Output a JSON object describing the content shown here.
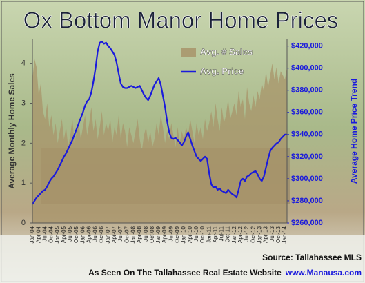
{
  "chart_data": {
    "type": "area-line",
    "title": "Ox Bottom Manor Home Prices",
    "ylabel": "Average Monthly Home Sales",
    "y2label": "Average Home Price Trend",
    "source": "Source: Tallahassee MLS",
    "footer": "As Seen On The Tallahassee Real Estate Website",
    "website": "www.Manausa.com",
    "categories": [
      "Jan-04",
      null,
      null,
      "Apr-04",
      null,
      null,
      "Jul-04",
      null,
      null,
      "Oct-04",
      null,
      null,
      "Jan-05",
      null,
      null,
      "Apr-05",
      null,
      null,
      "Jul-05",
      null,
      null,
      "Oct-05",
      null,
      null,
      "Jan-06",
      null,
      null,
      "Apr-06",
      null,
      null,
      "Jul-06",
      null,
      null,
      "Oct-06",
      null,
      null,
      "Jan-07",
      null,
      null,
      "Apr-07",
      null,
      null,
      "Jul-07",
      null,
      null,
      "Oct-07",
      null,
      null,
      "Jan-08",
      null,
      null,
      "Apr-08",
      null,
      null,
      "Jul-08",
      null,
      null,
      "Oct-08",
      null,
      null,
      "Jan-09",
      null,
      null,
      "Apr-09",
      null,
      null,
      "Jul-09",
      null,
      null,
      "Oct-09",
      null,
      null,
      "Jan-10",
      null,
      null,
      "Apr-10",
      null,
      null,
      "Jul-10",
      null,
      null,
      "Oct-10",
      null,
      null,
      "Jan-11",
      null,
      null,
      "Apr-11",
      null,
      null,
      "Jul-11",
      null,
      null,
      "Oct-11",
      null,
      null,
      "Jan-12",
      null,
      null,
      "Apr-12",
      null,
      null,
      "Jul-12",
      null,
      null,
      "Oct-12",
      null,
      null,
      "Jan-13",
      null,
      null,
      "Apr-13",
      null,
      null,
      "Jul-13",
      null,
      null,
      "Oct-13",
      null,
      null,
      "Jan-14",
      null
    ],
    "series": [
      {
        "name": "Avg. # Sales",
        "color": "#a8946a",
        "axis": "y",
        "values": [
          3.6,
          4.1,
          3.9,
          3.2,
          3.5,
          2.8,
          2.6,
          3.0,
          2.4,
          2.7,
          2.2,
          2.5,
          2.0,
          2.3,
          2.6,
          2.1,
          2.4,
          1.9,
          2.2,
          2.6,
          2.0,
          2.3,
          2.5,
          2.1,
          2.4,
          2.7,
          2.2,
          2.5,
          2.9,
          2.3,
          2.6,
          2.1,
          2.4,
          2.8,
          2.2,
          2.5,
          2.3,
          2.6,
          2.0,
          2.4,
          2.2,
          2.7,
          2.1,
          2.5,
          2.3,
          1.9,
          2.4,
          2.2,
          2.0,
          2.3,
          2.6,
          2.1,
          1.8,
          2.2,
          2.4,
          2.0,
          2.3,
          1.9,
          2.1,
          2.5,
          2.2,
          2.7,
          2.4,
          2.0,
          2.3,
          2.1,
          2.5,
          2.2,
          1.9,
          2.4,
          2.0,
          2.3,
          2.1,
          2.4,
          2.2,
          2.6,
          2.3,
          2.0,
          2.5,
          2.2,
          2.4,
          2.1,
          2.6,
          2.3,
          2.5,
          2.8,
          2.4,
          3.0,
          2.6,
          2.3,
          2.9,
          2.5,
          2.7,
          3.1,
          2.6,
          2.8,
          3.0,
          2.7,
          3.3,
          2.9,
          3.1,
          2.6,
          3.4,
          3.0,
          2.8,
          3.2,
          2.9,
          3.3,
          3.1,
          3.5,
          3.3,
          3.8,
          3.4,
          3.7,
          4.0,
          3.6,
          3.9,
          3.5,
          3.8,
          3.7,
          3.6,
          3.9
        ]
      },
      {
        "name": "Avg. Price",
        "color": "#1a1adc",
        "axis": "y2",
        "values": [
          277000,
          280000,
          283000,
          285000,
          287000,
          289000,
          290000,
          293000,
          297000,
          300000,
          302000,
          305000,
          308000,
          312000,
          316000,
          320000,
          323000,
          327000,
          331000,
          335000,
          340000,
          345000,
          350000,
          355000,
          360000,
          366000,
          370000,
          372000,
          378000,
          388000,
          400000,
          415000,
          423000,
          424000,
          422000,
          423000,
          420000,
          418000,
          415000,
          412000,
          405000,
          395000,
          386000,
          383000,
          382000,
          382000,
          383000,
          384000,
          383000,
          382000,
          383000,
          384000,
          380000,
          376000,
          373000,
          371000,
          375000,
          380000,
          385000,
          388000,
          391000,
          385000,
          375000,
          365000,
          352000,
          342000,
          337000,
          336000,
          337000,
          335000,
          333000,
          330000,
          333000,
          338000,
          342000,
          336000,
          330000,
          325000,
          320000,
          318000,
          316000,
          318000,
          320000,
          318000,
          305000,
          295000,
          292000,
          293000,
          290000,
          291000,
          289000,
          288000,
          287000,
          290000,
          288000,
          286000,
          285000,
          283000,
          290000,
          298000,
          300000,
          298000,
          302000,
          303000,
          305000,
          306000,
          307000,
          304000,
          300000,
          298000,
          302000,
          310000,
          318000,
          325000,
          328000,
          330000,
          332000,
          333000,
          336000,
          338000,
          340000,
          340000
        ]
      }
    ],
    "ylim": [
      0,
      4.6
    ],
    "yticks": [
      0,
      1,
      2,
      3,
      4
    ],
    "y2lim": [
      260000,
      426000
    ],
    "y2ticks": [
      {
        "value": 260000,
        "label": "$260,000"
      },
      {
        "value": 280000,
        "label": "$280,000"
      },
      {
        "value": 300000,
        "label": "$300,000"
      },
      {
        "value": 320000,
        "label": "$320,000"
      },
      {
        "value": 340000,
        "label": "$340,000"
      },
      {
        "value": 360000,
        "label": "$360,000"
      },
      {
        "value": 380000,
        "label": "$380,000"
      },
      {
        "value": 400000,
        "label": "$400,000"
      },
      {
        "value": 420000,
        "label": "$420,000"
      }
    ],
    "grid": false
  }
}
